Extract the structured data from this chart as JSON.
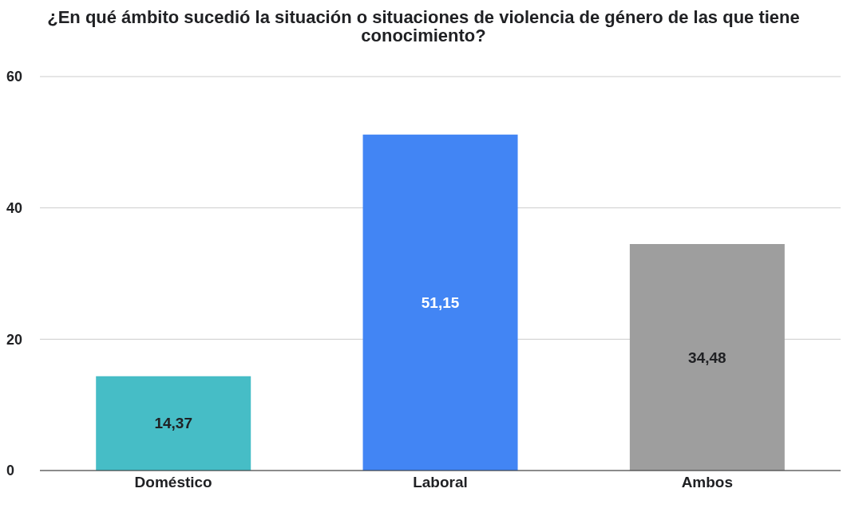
{
  "chart_data": {
    "type": "bar",
    "title": "¿En qué ámbito sucedió la situación o situaciones de violencia de género de las que tiene conocimiento?",
    "categories": [
      "Doméstico",
      "Laboral",
      "Ambos"
    ],
    "values": [
      14.37,
      51.15,
      34.48
    ],
    "colors": [
      "#46bdc6",
      "#4285f4",
      "#9e9e9e"
    ],
    "value_labels": [
      "14,37",
      "51,15",
      "34,48"
    ],
    "ylim": [
      0,
      60
    ],
    "yticks": [
      0,
      20,
      40,
      60
    ],
    "grid": "y"
  }
}
